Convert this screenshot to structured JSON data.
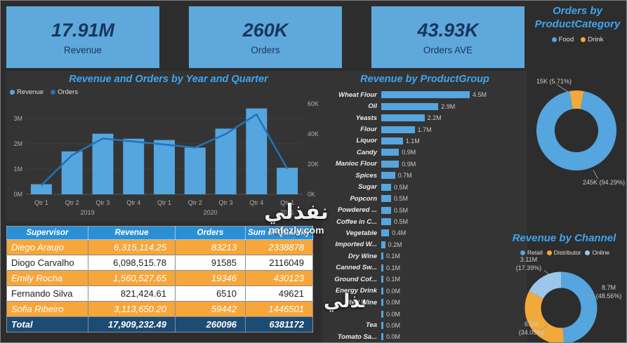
{
  "watermark": {
    "text": "نفذلي",
    "domain": "nafezly.com"
  },
  "kpis": [
    {
      "value": "17.91M",
      "label": "Revenue"
    },
    {
      "value": "260K",
      "label": "Orders"
    },
    {
      "value": "43.93K",
      "label": "Orders AVE"
    }
  ],
  "colors": {
    "background": "#2d2d2d",
    "panel": "#343434",
    "kpi_bg": "#5fa8dc",
    "kpi_text": "#17365d",
    "title_blue": "#41a4ec",
    "bar_blue": "#55a5de",
    "line_blue": "#2272b8",
    "orange": "#f2a93b",
    "light_blue": "#9cc7ea",
    "table_header": "#2b8fd6",
    "table_row_highlight": "#f6a63b",
    "table_total": "#1c4b74",
    "axis_text": "#aeaeae"
  },
  "chart_data": [
    {
      "type": "combo",
      "title": "Revenue and Orders by Year and Quarter",
      "legend": [
        {
          "label": "Revenue",
          "color": "bar_blue"
        },
        {
          "label": "Orders",
          "color": "line_blue"
        }
      ],
      "categories": [
        "Qtr 1",
        "Qtr 2",
        "Qtr 3",
        "Qtr 4",
        "Qtr 1",
        "Qtr 2",
        "Qtr 3",
        "Qtr 4",
        "Qtr 1"
      ],
      "year_groups": [
        {
          "label": "2019",
          "span": 4
        },
        {
          "label": "2020",
          "span": 4
        },
        {
          "label": "2021",
          "span": 1
        }
      ],
      "series": [
        {
          "name": "Revenue",
          "kind": "bar",
          "unit": "M",
          "values": [
            0.4,
            1.7,
            2.4,
            2.2,
            2.15,
            1.85,
            2.6,
            3.4,
            1.05
          ]
        },
        {
          "name": "Orders",
          "kind": "line",
          "unit": "K",
          "values": [
            6,
            26,
            37,
            35,
            33,
            31,
            40,
            53,
            17
          ]
        }
      ],
      "left_axis": {
        "ticks": [
          "0M",
          "1M",
          "2M",
          "3M"
        ]
      },
      "right_axis": {
        "ticks": [
          "0K",
          "20K",
          "40K",
          "60K"
        ]
      }
    },
    {
      "type": "bar",
      "orientation": "horizontal",
      "title": "Revenue by ProductGroup",
      "categories": [
        "Wheat Flour",
        "Oil",
        "Yeasts",
        "Flour",
        "Liquor",
        "Candy",
        "Manioc Flour",
        "Spices",
        "Sugar",
        "Popcorn",
        "Powdered ...",
        "Coffee in C...",
        "Vegetable",
        "Imported W...",
        "Dry Wine",
        "Canned Sw...",
        "Ground Cof...",
        "Energy Drink",
        "Red Wine",
        "",
        "Tea",
        "Tomato Sa..."
      ],
      "values": [
        4.5,
        2.9,
        2.2,
        1.7,
        1.1,
        0.9,
        0.9,
        0.7,
        0.5,
        0.5,
        0.5,
        0.5,
        0.4,
        0.2,
        0.1,
        0.1,
        0.1,
        0.0,
        0.0,
        0.0,
        0.0,
        0.0
      ],
      "value_labels": [
        "4.5M",
        "2.9M",
        "2.2M",
        "1.7M",
        "1.1M",
        "0.9M",
        "0.9M",
        "0.7M",
        "0.5M",
        "0.5M",
        "0.5M",
        "0.5M",
        "0.4M",
        "0.2M",
        "0.1M",
        "0.1M",
        "0.1M",
        "0.0M",
        "0.0M",
        "0.0M",
        "0.0M",
        "0.0M"
      ],
      "xlabel": "",
      "ylabel": ""
    },
    {
      "type": "pie",
      "title": "Orders by ProductCategory",
      "legend": [
        {
          "label": "Food",
          "color": "bar_blue"
        },
        {
          "label": "Drink",
          "color": "orange"
        }
      ],
      "slices": [
        {
          "name": "Drink",
          "value": "15K",
          "pct": 5.71,
          "color": "orange",
          "label": "15K (5.71%)"
        },
        {
          "name": "Food",
          "value": "245K",
          "pct": 94.29,
          "color": "bar_blue",
          "label": "245K (94.29%)"
        }
      ]
    },
    {
      "type": "pie",
      "title": "Revenue by Channel",
      "legend": [
        {
          "label": "Retail",
          "color": "bar_blue"
        },
        {
          "label": "Distributor",
          "color": "orange"
        },
        {
          "label": "Online",
          "color": "light_blue"
        }
      ],
      "slices": [
        {
          "name": "Retail",
          "value": "8.7M",
          "pct": 48.56,
          "color": "bar_blue",
          "label": "8.7M (48.56%)"
        },
        {
          "name": "Distributor",
          "value": "6.1M",
          "pct": 34.05,
          "color": "orange",
          "label": "6.1M (34.05%)"
        },
        {
          "name": "Online",
          "value": "3.11M",
          "pct": 17.39,
          "color": "light_blue",
          "label": "3.11M (17.39%)"
        }
      ]
    }
  ],
  "table": {
    "headers": [
      "Supervisor",
      "Revenue",
      "Orders",
      "Sum of Quantity"
    ],
    "rows": [
      {
        "highlight": true,
        "cells": [
          "Diego Araujo",
          "6,315,114.25",
          "83213",
          "2338878"
        ]
      },
      {
        "highlight": false,
        "cells": [
          "Diogo Carvalho",
          "6,098,515.78",
          "91585",
          "2116049"
        ]
      },
      {
        "highlight": true,
        "cells": [
          "Emily Rocha",
          "1,560,527.65",
          "19346",
          "430123"
        ]
      },
      {
        "highlight": false,
        "cells": [
          "Fernando Silva",
          "821,424.61",
          "6510",
          "49621"
        ]
      },
      {
        "highlight": true,
        "cells": [
          "Sofia Ribeiro",
          "3,113,650.20",
          "59442",
          "1446501"
        ]
      }
    ],
    "total_row": [
      "Total",
      "17,909,232.49",
      "260096",
      "6381172"
    ]
  }
}
